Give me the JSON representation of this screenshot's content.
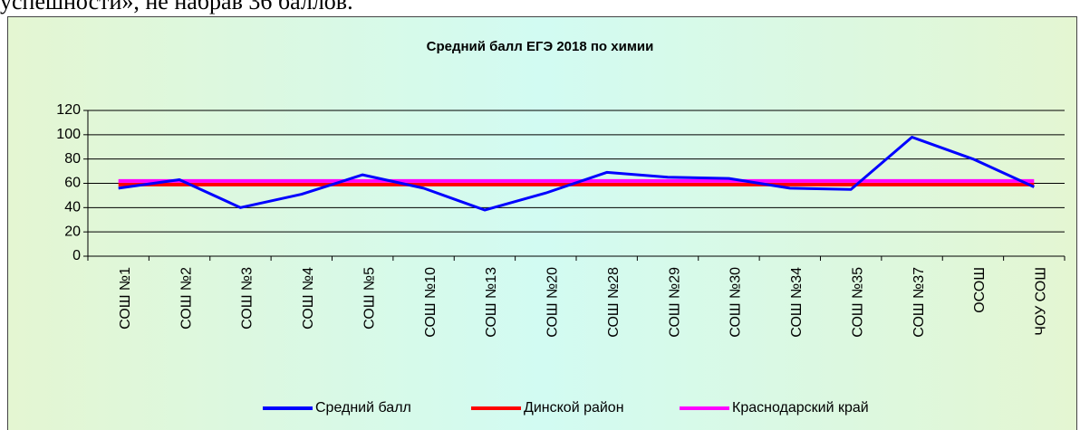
{
  "document": {
    "text": "успешности», не набрав 36 баллов."
  },
  "chart_data": {
    "type": "line",
    "title": "Средний балл ЕГЭ 2018 по химии",
    "categories": [
      "СОШ №1",
      "СОШ №2",
      "СОШ №3",
      "СОШ №4",
      "СОШ №5",
      "СОШ №10",
      "СОШ №13",
      "СОШ №20",
      "СОШ №28",
      "СОШ №29",
      "СОШ №30",
      "СОШ №34",
      "СОШ №35",
      "СОШ №37",
      "ОСОШ",
      "ЧОУ СОШ"
    ],
    "series": [
      {
        "name": "Средний балл",
        "color": "#0000ff",
        "values": [
          56,
          63,
          40,
          51,
          67,
          56,
          38,
          52,
          69,
          65,
          64,
          56,
          55,
          98,
          80,
          57
        ]
      },
      {
        "name": "Динской район",
        "color": "#ff0000",
        "values": [
          59,
          59,
          59,
          59,
          59,
          59,
          59,
          59,
          59,
          59,
          59,
          59,
          59,
          59,
          59,
          59
        ]
      },
      {
        "name": "Краснодарский край",
        "color": "#ff00ff",
        "values": [
          62,
          62,
          62,
          62,
          62,
          62,
          62,
          62,
          62,
          62,
          62,
          62,
          62,
          62,
          62,
          62
        ]
      }
    ],
    "ylim": [
      0,
      120
    ],
    "yticks": [
      0,
      20,
      40,
      60,
      80,
      100,
      120
    ],
    "grid": true,
    "legend": "bottom"
  }
}
